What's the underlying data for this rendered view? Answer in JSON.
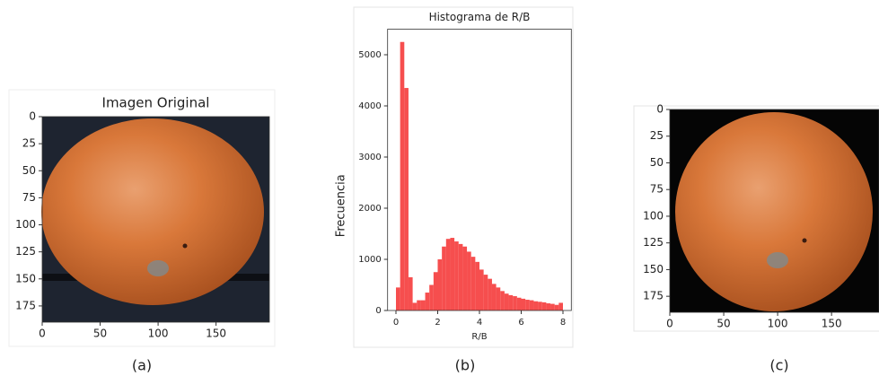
{
  "chart_data": [
    {
      "type": "image",
      "title": "Imagen Original",
      "caption": "(a)",
      "xlim": [
        0,
        196
      ],
      "ylim": [
        190,
        0
      ],
      "xticks": [
        0,
        50,
        100,
        150
      ],
      "yticks": [
        0,
        25,
        50,
        75,
        100,
        125,
        150,
        175
      ]
    },
    {
      "type": "histogram",
      "title": "Histograma de R/B",
      "caption": "(b)",
      "x_label": "R/B",
      "y_label": "Frecuencia",
      "color": "#f53b3b",
      "bins": [
        0,
        0.2,
        0.4,
        0.6,
        0.8,
        1.0,
        1.2,
        1.4,
        1.6,
        1.8,
        2.0,
        2.2,
        2.4,
        2.6,
        2.8,
        3.0,
        3.2,
        3.4,
        3.6,
        3.8,
        4.0,
        4.2,
        4.4,
        4.6,
        4.8,
        5.0,
        5.2,
        5.4,
        5.6,
        5.8,
        6.0,
        6.2,
        6.4,
        6.6,
        6.8,
        7.0,
        7.2,
        7.4,
        7.6,
        7.8,
        8.0
      ],
      "values": [
        450,
        5250,
        4350,
        650,
        150,
        200,
        200,
        350,
        500,
        750,
        1000,
        1250,
        1400,
        1420,
        1350,
        1300,
        1250,
        1150,
        1050,
        950,
        800,
        700,
        620,
        520,
        450,
        380,
        330,
        300,
        280,
        250,
        230,
        210,
        200,
        180,
        170,
        160,
        140,
        130,
        110,
        150
      ],
      "xlim": [
        -0.4,
        8.4
      ],
      "ylim": [
        0,
        5500
      ],
      "xticks": [
        0,
        2,
        4,
        6,
        8
      ],
      "yticks": [
        0,
        1000,
        2000,
        3000,
        4000,
        5000
      ]
    },
    {
      "type": "image",
      "caption": "(c)",
      "xlim": [
        0,
        194
      ],
      "ylim": [
        190,
        0
      ],
      "xticks": [
        0,
        50,
        100,
        150
      ],
      "yticks": [
        0,
        25,
        50,
        75,
        100,
        125,
        150,
        175
      ]
    }
  ]
}
